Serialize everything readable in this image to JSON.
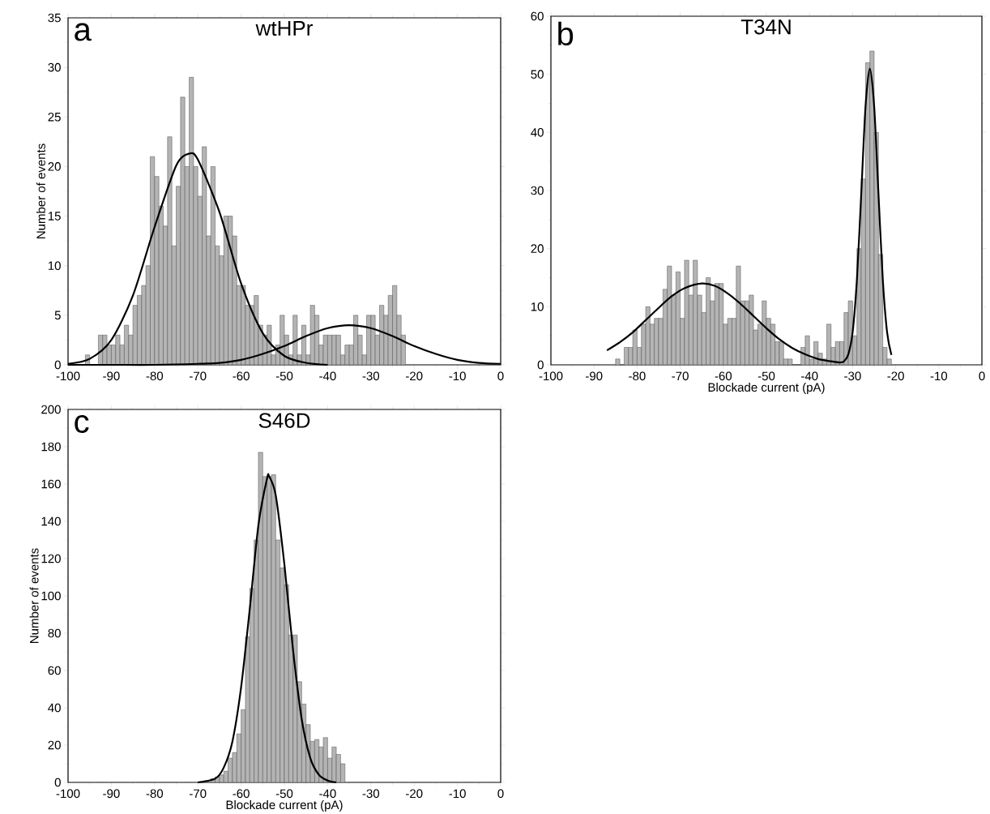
{
  "chart_data": [
    {
      "type": "histogram",
      "title": "wtHPr",
      "annotations": [
        "a"
      ],
      "ylabel": "Number of events",
      "bins": [
        -96,
        -95,
        -94,
        -93,
        -92,
        -91,
        -90,
        -89,
        -88,
        -87,
        -86,
        -85,
        -84,
        -83,
        -82,
        -81,
        -80,
        -79,
        -78,
        -77,
        -76,
        -75,
        -74,
        -73,
        -72,
        -71,
        -70,
        -69,
        -68,
        -67,
        -66,
        -65,
        -64,
        -63,
        -62,
        -61,
        -60,
        -59,
        -58,
        -57,
        -56,
        -55,
        -54,
        -53,
        -52,
        -51,
        -50,
        -49,
        -48,
        -47,
        -46,
        -45,
        -44,
        -43,
        -42,
        -41,
        -40,
        -39,
        -38,
        -37,
        -36,
        -35,
        -34,
        -33,
        -32,
        -31,
        -30,
        -29,
        -28,
        -27,
        -26,
        -25,
        -24,
        -23,
        -22
      ],
      "values": [
        1,
        0,
        0,
        3,
        3,
        2,
        2,
        3,
        2,
        4,
        3,
        6,
        7,
        8,
        10,
        21,
        19,
        16,
        14,
        23,
        12,
        18,
        27,
        20,
        29,
        20,
        17,
        22,
        13,
        20,
        12,
        11,
        15,
        15,
        13,
        8,
        8,
        6,
        6,
        7,
        4,
        3,
        4,
        1,
        2,
        5,
        3,
        1,
        5,
        1,
        4,
        1,
        6,
        5,
        2,
        3,
        3,
        3,
        3,
        1,
        2,
        2,
        5,
        3,
        1,
        5,
        5,
        3,
        6,
        5,
        7,
        8,
        5,
        3
      ],
      "color": "#b4b4b4",
      "series": [
        {
          "type": "line",
          "color": "#000000",
          "x": [
            -100,
            -95,
            -90,
            -85,
            -80,
            -75,
            -72,
            -70,
            -65,
            -60,
            -55,
            -50,
            -45,
            -40
          ],
          "values": [
            0.1,
            0.6,
            2.5,
            7.0,
            13.9,
            20.1,
            21.3,
            20.7,
            15.4,
            8.2,
            3.2,
            0.9,
            0.2,
            0
          ]
        },
        {
          "type": "line",
          "color": "#000000",
          "x": [
            -100,
            -90,
            -80,
            -70,
            -65,
            -60,
            -55,
            -50,
            -45,
            -40,
            -35,
            -30,
            -25,
            -20,
            -15,
            -10,
            -5,
            0
          ],
          "values": [
            0,
            0,
            0,
            0.1,
            0.2,
            0.5,
            1.1,
            1.9,
            2.9,
            3.7,
            4.0,
            3.7,
            2.9,
            1.9,
            1.1,
            0.5,
            0.2,
            0.1
          ]
        }
      ],
      "xlim": [
        -100,
        0
      ],
      "ylim": [
        0,
        35
      ],
      "xticks": [
        -100,
        -90,
        -80,
        -70,
        -60,
        -50,
        -40,
        -30,
        -20,
        -10,
        0
      ],
      "yticks": [
        0,
        5,
        10,
        15,
        20,
        25,
        30,
        35
      ]
    },
    {
      "type": "histogram",
      "title": "T34N",
      "annotations": [
        "b"
      ],
      "xlabel": "Blockade current (pA)",
      "bins": [
        -85,
        -84,
        -83,
        -82,
        -81,
        -80,
        -79,
        -78,
        -77,
        -76,
        -75,
        -74,
        -73,
        -72,
        -71,
        -70,
        -69,
        -68,
        -67,
        -66,
        -65,
        -64,
        -63,
        -62,
        -61,
        -60,
        -59,
        -58,
        -57,
        -56,
        -55,
        -54,
        -53,
        -52,
        -51,
        -50,
        -49,
        -48,
        -47,
        -46,
        -45,
        -44,
        -43,
        -42,
        -41,
        -40,
        -39,
        -38,
        -37,
        -36,
        -35,
        -34,
        -33,
        -32,
        -31,
        -30,
        -29,
        -28,
        -27,
        -26,
        -25,
        -24,
        -23,
        -22,
        -21
      ],
      "values": [
        1,
        0,
        3,
        3,
        6,
        3,
        7,
        10,
        7,
        8,
        8,
        13,
        17,
        12,
        16,
        8,
        18,
        12,
        18,
        12,
        9,
        15,
        11,
        14,
        14,
        7,
        8,
        8,
        17,
        11,
        11,
        12,
        6,
        7,
        11,
        8,
        7,
        4,
        4,
        1,
        1,
        0,
        0,
        3,
        5,
        1,
        4,
        2,
        1,
        7,
        3,
        4,
        4,
        9,
        11,
        5,
        20,
        32,
        52,
        54,
        40,
        19,
        3,
        1
      ],
      "color": "#b4b4b4",
      "series": [
        {
          "type": "line",
          "color": "#000000",
          "x": [
            -87,
            -84,
            -81,
            -78,
            -75,
            -72,
            -69,
            -65,
            -62,
            -59,
            -56,
            -53,
            -50,
            -47,
            -44,
            -41,
            -38,
            -35,
            -33,
            -32,
            -31,
            -30,
            -29,
            -28,
            -27,
            -26,
            -25,
            -24,
            -23,
            -22,
            -21
          ],
          "values": [
            2.5,
            3.9,
            5.6,
            7.7,
            9.8,
            11.8,
            13.2,
            14.0,
            13.6,
            12.3,
            10.5,
            8.4,
            6.3,
            4.4,
            2.9,
            1.8,
            1.0,
            0.6,
            0.4,
            0.6,
            1.8,
            5.6,
            14.7,
            29.4,
            44.5,
            51,
            44.5,
            29.4,
            14.7,
            5.6,
            1.7
          ]
        }
      ],
      "xlim": [
        -100,
        0
      ],
      "ylim": [
        0,
        60
      ],
      "xticks": [
        -100,
        -90,
        -80,
        -70,
        -60,
        -50,
        -40,
        -30,
        -20,
        -10,
        0
      ],
      "yticks": [
        0,
        10,
        20,
        30,
        40,
        50,
        60
      ]
    },
    {
      "type": "histogram",
      "title": "S46D",
      "annotations": [
        "c"
      ],
      "xlabel": "Blockade current (pA)",
      "ylabel": "Number of events",
      "bins": [
        -67,
        -66,
        -65,
        -64,
        -63,
        -62,
        -61,
        -60,
        -59,
        -58,
        -57,
        -56,
        -55,
        -54,
        -53,
        -52,
        -51,
        -50,
        -49,
        -48,
        -47,
        -46,
        -45,
        -44,
        -43,
        -42,
        -41,
        -40,
        -39,
        -38,
        -37,
        -36
      ],
      "values": [
        2,
        3,
        4,
        6,
        13,
        16,
        26,
        39,
        78,
        104,
        130,
        177,
        164,
        164,
        165,
        130,
        115,
        106,
        79,
        79,
        54,
        42,
        31,
        22,
        23,
        19,
        24,
        13,
        19,
        15,
        10
      ],
      "color": "#b4b4b4",
      "series": [
        {
          "type": "line",
          "color": "#000000",
          "x": [
            -70,
            -66,
            -64,
            -62,
            -60,
            -58,
            -56,
            -54,
            -53.5,
            -52,
            -50,
            -48,
            -46,
            -44,
            -42,
            -40,
            -38
          ],
          "values": [
            0,
            2,
            8,
            22,
            51,
            93,
            138,
            163,
            164,
            154,
            117,
            71,
            34,
            13,
            4,
            1,
            0
          ]
        }
      ],
      "xlim": [
        -100,
        0
      ],
      "ylim": [
        0,
        200
      ],
      "xticks": [
        -100,
        -90,
        -80,
        -70,
        -60,
        -50,
        -40,
        -30,
        -20,
        -10,
        0
      ],
      "yticks": [
        0,
        20,
        40,
        60,
        80,
        100,
        120,
        140,
        160,
        180,
        200
      ]
    }
  ]
}
